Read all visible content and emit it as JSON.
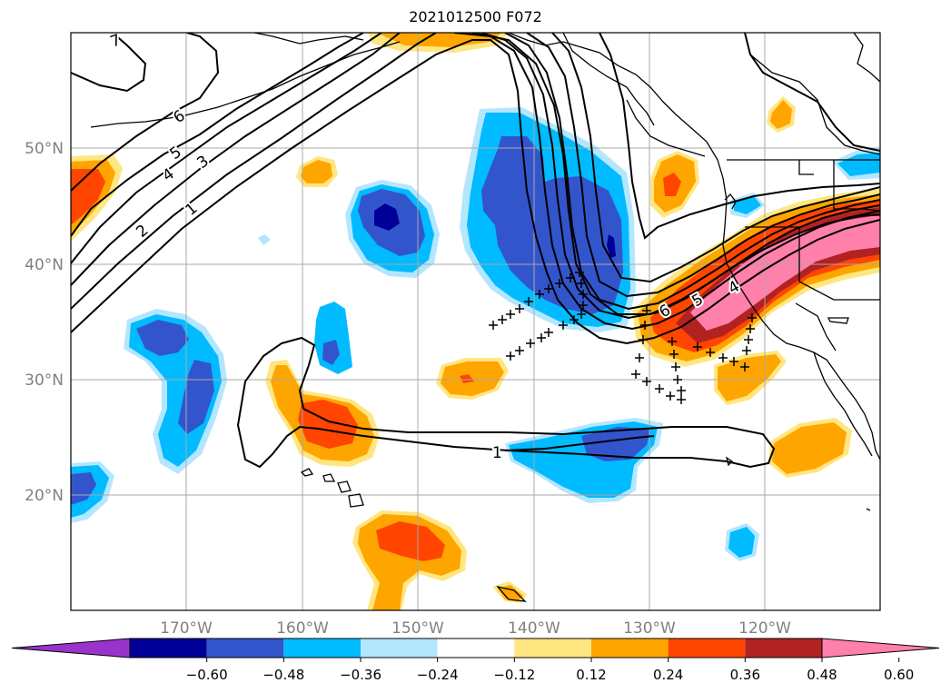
{
  "title": "2021012500 F072",
  "map": {
    "lon_range": [
      -180,
      -110
    ],
    "lat_range": [
      10,
      60
    ],
    "lat_ticks": [
      {
        "value": 20,
        "label": "20°N"
      },
      {
        "value": 30,
        "label": "30°N"
      },
      {
        "value": 40,
        "label": "40°N"
      },
      {
        "value": 50,
        "label": "50°N"
      }
    ],
    "lon_ticks": [
      {
        "value": -170,
        "label": "170°W"
      },
      {
        "value": -160,
        "label": "160°W"
      },
      {
        "value": -150,
        "label": "150°W"
      },
      {
        "value": -140,
        "label": "140°W"
      },
      {
        "value": -130,
        "label": "130°W"
      },
      {
        "value": -120,
        "label": "120°W"
      }
    ],
    "gridlines": true,
    "contour_labels": [
      "7",
      "6",
      "5",
      "4",
      "3",
      "2",
      "1",
      "1",
      "6",
      "5",
      "4"
    ]
  },
  "colorbar": {
    "extend": "both",
    "tick_labels": [
      "−0.60",
      "−0.48",
      "−0.36",
      "−0.24",
      "−0.12",
      "0.12",
      "0.24",
      "0.36",
      "0.48",
      "0.60"
    ],
    "colors": [
      "#9933cc",
      "#000099",
      "#3355cc",
      "#00bbff",
      "#b3e6ff",
      "#ffffff",
      "#ffe680",
      "#ffa500",
      "#ff4500",
      "#b22222",
      "#ff80aa"
    ]
  }
}
